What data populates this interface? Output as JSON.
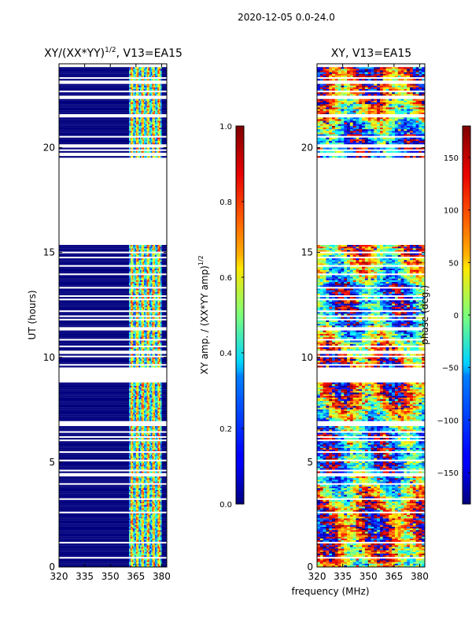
{
  "suptitle": "2020-12-05 0.0-24.0",
  "shared_xlabel": "frequency (MHz)",
  "chart_data": [
    {
      "type": "heatmap",
      "title_base": "XY/(XX*YY)",
      "title_exp": "1/2",
      "title_suffix": ", V13=EA15",
      "ylabel": "UT (hours)",
      "xlim": [
        320,
        383
      ],
      "ylim": [
        0,
        24
      ],
      "xticks": [
        "320",
        "335",
        "350",
        "365",
        "380"
      ],
      "xtick_values": [
        320,
        335,
        350,
        365,
        380
      ],
      "yticks": [
        "0",
        "5",
        "10",
        "15",
        "20"
      ],
      "ytick_values": [
        0,
        5,
        10,
        15,
        20
      ],
      "data_gaps_hours": [
        [
          8.8,
          9.5
        ],
        [
          15.4,
          19.4
        ],
        [
          23.0,
          23.2
        ]
      ],
      "active_band_mhz": [
        361,
        380
      ],
      "colorbar": {
        "label_base": "XY amp. / (XX*YY amp)",
        "label_exp": "1/2",
        "range": [
          0.0,
          1.0
        ],
        "ticks": [
          "0.0",
          "0.2",
          "0.4",
          "0.6",
          "0.8",
          "1.0"
        ],
        "tick_values": [
          0.0,
          0.2,
          0.4,
          0.6,
          0.8,
          1.0
        ]
      }
    },
    {
      "type": "heatmap",
      "title": "XY, V13=EA15",
      "xlim": [
        320,
        383
      ],
      "ylim": [
        0,
        24
      ],
      "xticks": [
        "320",
        "335",
        "350",
        "365",
        "380"
      ],
      "xtick_values": [
        320,
        335,
        350,
        365,
        380
      ],
      "yticks": [
        "0",
        "5",
        "10",
        "15",
        "20"
      ],
      "ytick_values": [
        0,
        5,
        10,
        15,
        20
      ],
      "data_gaps_hours": [
        [
          8.8,
          9.5
        ],
        [
          15.4,
          19.4
        ],
        [
          23.0,
          23.2
        ]
      ],
      "colorbar": {
        "label": "phase (deg.)",
        "range": [
          -180,
          180
        ],
        "ticks": [
          "−150",
          "−100",
          "−50",
          "0",
          "50",
          "100",
          "150"
        ],
        "tick_values": [
          -150,
          -100,
          -50,
          0,
          50,
          100,
          150
        ]
      }
    }
  ]
}
